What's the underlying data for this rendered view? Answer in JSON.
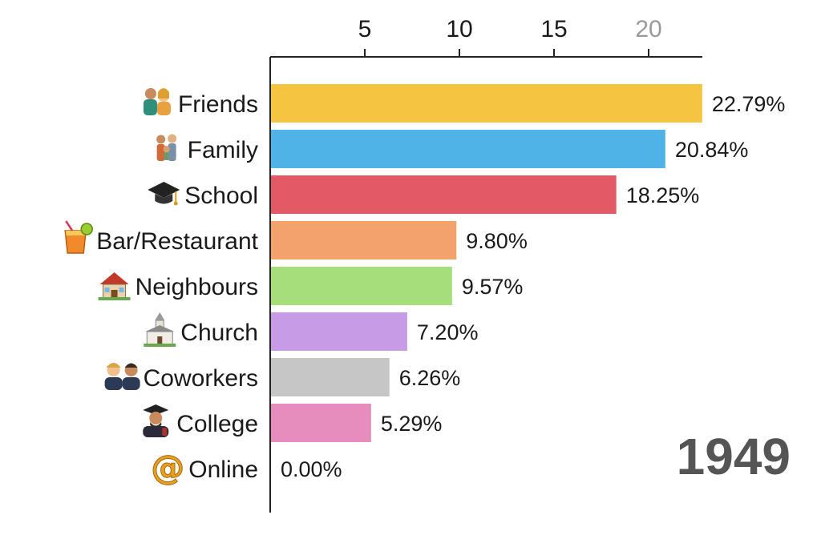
{
  "chart_data": {
    "type": "bar",
    "orientation": "horizontal",
    "year": "1949",
    "categories": [
      "Friends",
      "Family",
      "School",
      "Bar/Restaurant",
      "Neighbours",
      "Church",
      "Coworkers",
      "College",
      "Online"
    ],
    "values": [
      22.79,
      20.84,
      18.25,
      9.8,
      9.57,
      7.2,
      6.26,
      5.29,
      0.0
    ],
    "value_labels": [
      "22.79%",
      "20.84%",
      "18.25%",
      "9.80%",
      "9.57%",
      "7.20%",
      "6.26%",
      "5.29%",
      "0.00%"
    ],
    "colors": [
      "#f5c542",
      "#4fb3e8",
      "#e35a66",
      "#f4a26b",
      "#a6de7a",
      "#c89be6",
      "#c6c6c6",
      "#e58dbd",
      "#ffffff"
    ],
    "icons": [
      "couple-icon",
      "family-icon",
      "graduation-cap-icon",
      "cocktail-icon",
      "house-icon",
      "church-icon",
      "coworkers-icon",
      "graduate-icon",
      "at-sign-icon"
    ],
    "xticks": [
      "5",
      "10",
      "15",
      "20"
    ],
    "xtick_values": [
      5,
      10,
      15,
      20
    ],
    "faded_tick": "20",
    "xlim": [
      0,
      23
    ],
    "grid": false,
    "xaxis_position": "top"
  }
}
